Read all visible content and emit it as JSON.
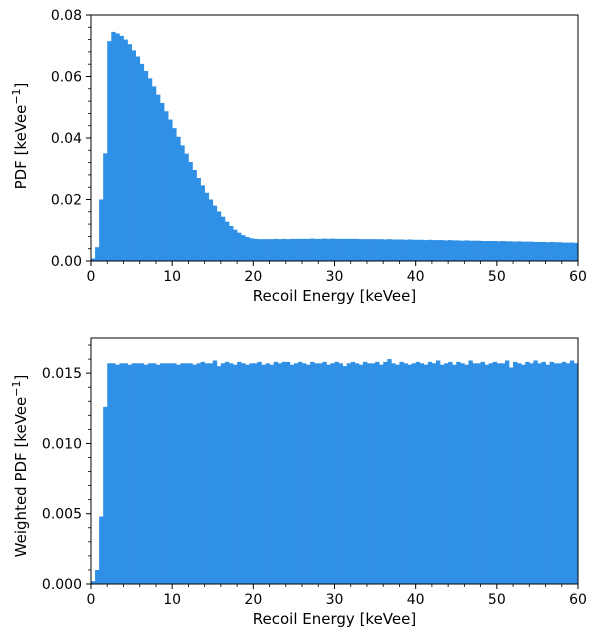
{
  "chart_data": [
    {
      "type": "bar",
      "xlabel": "Recoil Energy [keVee]",
      "ylabel": "PDF [keVee",
      "ylabel_sup": "−1",
      "ylabel_close": "]",
      "xlim": [
        0,
        60
      ],
      "ylim": [
        0,
        0.08
      ],
      "grid": false,
      "bar_color": "#2f90e6",
      "bin_width": 0.5,
      "xticks": [
        0,
        10,
        20,
        30,
        40,
        50,
        60
      ],
      "xtick_labels": [
        "0",
        "10",
        "20",
        "30",
        "40",
        "50",
        "60"
      ],
      "yticks": [
        0,
        0.02,
        0.04,
        0.06,
        0.08
      ],
      "ytick_labels": [
        "0.00",
        "0.02",
        "0.04",
        "0.06",
        "0.08"
      ],
      "x": [
        0.25,
        0.75,
        1.25,
        1.75,
        2.25,
        2.75,
        3.25,
        3.75,
        4.25,
        4.75,
        5.25,
        5.75,
        6.25,
        6.75,
        7.25,
        7.75,
        8.25,
        8.75,
        9.25,
        9.75,
        10.25,
        10.75,
        11.25,
        11.75,
        12.25,
        12.75,
        13.25,
        13.75,
        14.25,
        14.75,
        15.25,
        15.75,
        16.25,
        16.75,
        17.25,
        17.75,
        18.25,
        18.75,
        19.25,
        19.75,
        20.25,
        20.75,
        21.25,
        21.75,
        22.25,
        22.75,
        23.25,
        23.75,
        24.25,
        24.75,
        25.25,
        25.75,
        26.25,
        26.75,
        27.25,
        27.75,
        28.25,
        28.75,
        29.25,
        29.75,
        30.25,
        30.75,
        31.25,
        31.75,
        32.25,
        32.75,
        33.25,
        33.75,
        34.25,
        34.75,
        35.25,
        35.75,
        36.25,
        36.75,
        37.25,
        37.75,
        38.25,
        38.75,
        39.25,
        39.75,
        40.25,
        40.75,
        41.25,
        41.75,
        42.25,
        42.75,
        43.25,
        43.75,
        44.25,
        44.75,
        45.25,
        45.75,
        46.25,
        46.75,
        47.25,
        47.75,
        48.25,
        48.75,
        49.25,
        49.75,
        50.25,
        50.75,
        51.25,
        51.75,
        52.25,
        52.75,
        53.25,
        53.75,
        54.25,
        54.75,
        55.25,
        55.75,
        56.25,
        56.75,
        57.25,
        57.75,
        58.25,
        58.75,
        59.25,
        59.75
      ],
      "values": [
        0.0008,
        0.0045,
        0.02,
        0.035,
        0.0715,
        0.0745,
        0.074,
        0.0732,
        0.072,
        0.0705,
        0.0685,
        0.0665,
        0.0641,
        0.0618,
        0.0594,
        0.0568,
        0.0541,
        0.0514,
        0.0487,
        0.046,
        0.0432,
        0.0404,
        0.0376,
        0.0349,
        0.0322,
        0.0296,
        0.027,
        0.0246,
        0.0222,
        0.02,
        0.018,
        0.0161,
        0.0144,
        0.0128,
        0.0114,
        0.0102,
        0.0092,
        0.0084,
        0.0078,
        0.0074,
        0.0072,
        0.0071,
        0.0071,
        0.0071,
        0.0071,
        0.0072,
        0.0071,
        0.0072,
        0.0071,
        0.0072,
        0.0072,
        0.0072,
        0.0072,
        0.0072,
        0.0073,
        0.0072,
        0.0072,
        0.0073,
        0.0072,
        0.0073,
        0.0072,
        0.0072,
        0.0072,
        0.0072,
        0.0072,
        0.0072,
        0.0071,
        0.0071,
        0.0071,
        0.0071,
        0.0071,
        0.0071,
        0.007,
        0.0071,
        0.007,
        0.007,
        0.007,
        0.0069,
        0.007,
        0.0069,
        0.0069,
        0.0069,
        0.0068,
        0.0069,
        0.0068,
        0.0068,
        0.0068,
        0.0067,
        0.0068,
        0.0067,
        0.0067,
        0.0066,
        0.0067,
        0.0066,
        0.0066,
        0.0066,
        0.0065,
        0.0065,
        0.0065,
        0.0065,
        0.0064,
        0.0065,
        0.0064,
        0.0064,
        0.0063,
        0.0064,
        0.0063,
        0.0063,
        0.0063,
        0.0062,
        0.0062,
        0.0062,
        0.0061,
        0.0062,
        0.0061,
        0.0061,
        0.006,
        0.006,
        0.006,
        0.0059
      ]
    },
    {
      "type": "bar",
      "xlabel": "Recoil Energy [keVee]",
      "ylabel": "Weighted PDF [keVee",
      "ylabel_sup": "−1",
      "ylabel_close": "]",
      "xlim": [
        0,
        60
      ],
      "ylim": [
        0,
        0.0175
      ],
      "grid": false,
      "bar_color": "#2f90e6",
      "bin_width": 0.5,
      "xticks": [
        0,
        10,
        20,
        30,
        40,
        50,
        60
      ],
      "xtick_labels": [
        "0",
        "10",
        "20",
        "30",
        "40",
        "50",
        "60"
      ],
      "yticks": [
        0,
        0.005,
        0.01,
        0.015
      ],
      "ytick_labels": [
        "0.000",
        "0.005",
        "0.010",
        "0.015"
      ],
      "x": [
        0.25,
        0.75,
        1.25,
        1.75,
        2.25,
        2.75,
        3.25,
        3.75,
        4.25,
        4.75,
        5.25,
        5.75,
        6.25,
        6.75,
        7.25,
        7.75,
        8.25,
        8.75,
        9.25,
        9.75,
        10.25,
        10.75,
        11.25,
        11.75,
        12.25,
        12.75,
        13.25,
        13.75,
        14.25,
        14.75,
        15.25,
        15.75,
        16.25,
        16.75,
        17.25,
        17.75,
        18.25,
        18.75,
        19.25,
        19.75,
        20.25,
        20.75,
        21.25,
        21.75,
        22.25,
        22.75,
        23.25,
        23.75,
        24.25,
        24.75,
        25.25,
        25.75,
        26.25,
        26.75,
        27.25,
        27.75,
        28.25,
        28.75,
        29.25,
        29.75,
        30.25,
        30.75,
        31.25,
        31.75,
        32.25,
        32.75,
        33.25,
        33.75,
        34.25,
        34.75,
        35.25,
        35.75,
        36.25,
        36.75,
        37.25,
        37.75,
        38.25,
        38.75,
        39.25,
        39.75,
        40.25,
        40.75,
        41.25,
        41.75,
        42.25,
        42.75,
        43.25,
        43.75,
        44.25,
        44.75,
        45.25,
        45.75,
        46.25,
        46.75,
        47.25,
        47.75,
        48.25,
        48.75,
        49.25,
        49.75,
        50.25,
        50.75,
        51.25,
        51.75,
        52.25,
        52.75,
        53.25,
        53.75,
        54.25,
        54.75,
        55.25,
        55.75,
        56.25,
        56.75,
        57.25,
        57.75,
        58.25,
        58.75,
        59.25,
        59.75
      ],
      "values": [
        0.0002,
        0.001,
        0.0048,
        0.0126,
        0.0157,
        0.0157,
        0.0156,
        0.0157,
        0.0157,
        0.0156,
        0.0157,
        0.0157,
        0.0157,
        0.0156,
        0.0157,
        0.0157,
        0.0156,
        0.0157,
        0.0157,
        0.0157,
        0.0157,
        0.0156,
        0.0157,
        0.0157,
        0.0157,
        0.0156,
        0.0157,
        0.0158,
        0.0157,
        0.0157,
        0.0159,
        0.0155,
        0.0157,
        0.0158,
        0.0157,
        0.0156,
        0.0158,
        0.0157,
        0.0156,
        0.0157,
        0.0157,
        0.0158,
        0.0156,
        0.0157,
        0.0156,
        0.0158,
        0.0157,
        0.0158,
        0.0158,
        0.0156,
        0.0157,
        0.0158,
        0.0157,
        0.0156,
        0.0158,
        0.0157,
        0.0157,
        0.0158,
        0.0156,
        0.0157,
        0.0158,
        0.0157,
        0.0155,
        0.0157,
        0.0158,
        0.0157,
        0.0156,
        0.0158,
        0.0157,
        0.0157,
        0.0158,
        0.0156,
        0.0158,
        0.016,
        0.0157,
        0.0156,
        0.0158,
        0.0157,
        0.0156,
        0.0157,
        0.0158,
        0.0157,
        0.0156,
        0.0158,
        0.0157,
        0.0159,
        0.0156,
        0.0157,
        0.0158,
        0.0156,
        0.0158,
        0.0157,
        0.0156,
        0.0159,
        0.0157,
        0.0157,
        0.0158,
        0.0156,
        0.0157,
        0.0158,
        0.0157,
        0.0157,
        0.0159,
        0.0154,
        0.0158,
        0.0157,
        0.0156,
        0.0158,
        0.0157,
        0.0159,
        0.0157,
        0.0158,
        0.0156,
        0.0158,
        0.0157,
        0.0157,
        0.0158,
        0.0157,
        0.0159,
        0.0157
      ]
    }
  ]
}
